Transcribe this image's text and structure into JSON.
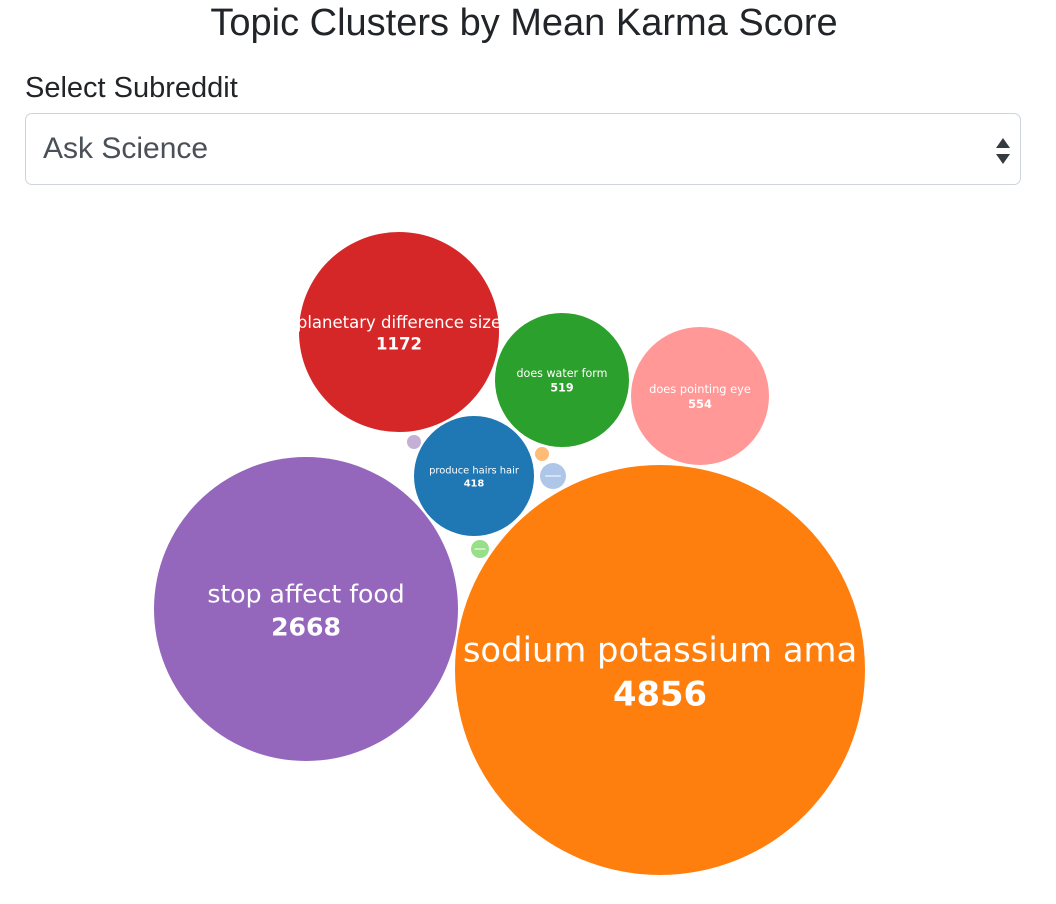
{
  "page": {
    "title": "Topic Clusters by Mean Karma Score"
  },
  "subreddit_select": {
    "label": "Select Subreddit",
    "selected": "Ask Science",
    "arrows_icon": "up-down-arrows-icon"
  },
  "chart_data": {
    "type": "bubble",
    "title": "Topic Clusters by Mean Karma Score",
    "value_label": "Mean Karma Score",
    "legend": "none",
    "grid": false,
    "bubbles": [
      {
        "label": "sodium potassium ama",
        "value": 4856,
        "color": "#ff7f0e"
      },
      {
        "label": "stop affect food",
        "value": 2668,
        "color": "#9467bd"
      },
      {
        "label": "planetary difference size",
        "value": 1172,
        "color": "#d62728"
      },
      {
        "label": "does pointing eye",
        "value": 554,
        "color": "#ff9896"
      },
      {
        "label": "does water form",
        "value": 519,
        "color": "#2ca02c"
      },
      {
        "label": "produce hairs hair",
        "value": 418,
        "color": "#1f77b4"
      },
      {
        "label": "",
        "value": null,
        "color": "#aec7e8"
      },
      {
        "label": "",
        "value": null,
        "color": "#98df8a"
      },
      {
        "label": "",
        "value": null,
        "color": "#ffbb78"
      },
      {
        "label": "",
        "value": null,
        "color": "#c5b0d5"
      }
    ]
  }
}
